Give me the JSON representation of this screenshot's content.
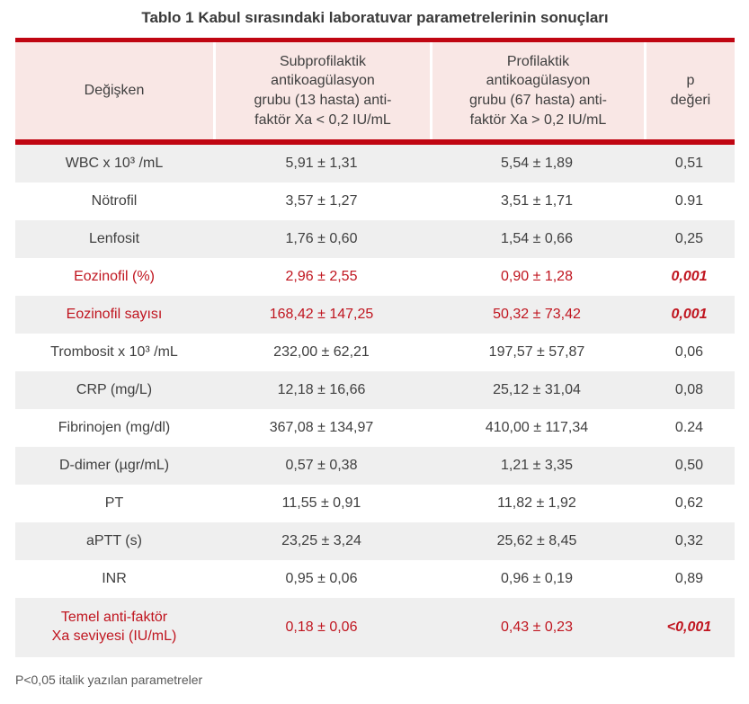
{
  "title": "Tablo 1 Kabul sırasındaki laboratuvar parametrelerinin sonuçları",
  "footnote": "P<0,05 italik yazılan parametreler",
  "colors": {
    "rule_red": "#c00612",
    "highlight_text_red": "#c0151f",
    "header_bg_pink": "#f9e7e5",
    "row_alt_gray": "#efefef",
    "body_text": "#3f3f3f",
    "footnote_text": "#595959"
  },
  "table": {
    "columns": [
      {
        "label": "Değişken"
      },
      {
        "label": "Subprofilaktik\nantikoagülasyon\ngrubu (13 hasta) anti-\nfaktör Xa < 0,2 IU/mL"
      },
      {
        "label": "Profilaktik\nantikoagülasyon\ngrubu (67 hasta) anti-\nfaktör Xa > 0,2 IU/mL"
      },
      {
        "label": "p\ndeğeri"
      }
    ],
    "rows": [
      {
        "name": "WBC x 10³ /mL",
        "subprophylactic": "5,91 ± 1,31",
        "prophylactic": "5,54 ± 1,89",
        "p": "0,51",
        "significant": false
      },
      {
        "name": "Nötrofil",
        "subprophylactic": "3,57 ± 1,27",
        "prophylactic": "3,51 ± 1,71",
        "p": "0.91",
        "significant": false
      },
      {
        "name": "Lenfosit",
        "subprophylactic": "1,76 ± 0,60",
        "prophylactic": "1,54 ± 0,66",
        "p": "0,25",
        "significant": false
      },
      {
        "name": "Eozinofil (%)",
        "subprophylactic": "2,96 ± 2,55",
        "prophylactic": "0,90 ± 1,28",
        "p": "0,001",
        "significant": true
      },
      {
        "name": "Eozinofil sayısı",
        "subprophylactic": "168,42 ± 147,25",
        "prophylactic": "50,32 ± 73,42",
        "p": "0,001",
        "significant": true
      },
      {
        "name": "Trombosit x 10³ /mL",
        "subprophylactic": "232,00 ± 62,21",
        "prophylactic": "197,57 ± 57,87",
        "p": "0,06",
        "significant": false
      },
      {
        "name": "CRP (mg/L)",
        "subprophylactic": "12,18 ± 16,66",
        "prophylactic": "25,12 ± 31,04",
        "p": "0,08",
        "significant": false
      },
      {
        "name": "Fibrinojen (mg/dl)",
        "subprophylactic": "367,08 ± 134,97",
        "prophylactic": "410,00 ± 117,34",
        "p": "0.24",
        "significant": false
      },
      {
        "name": "D-dimer (µgr/mL)",
        "subprophylactic": "0,57 ± 0,38",
        "prophylactic": "1,21 ± 3,35",
        "p": "0,50",
        "significant": false
      },
      {
        "name": "PT",
        "subprophylactic": "11,55 ± 0,91",
        "prophylactic": "11,82 ± 1,92",
        "p": "0,62",
        "significant": false
      },
      {
        "name": "aPTT (s)",
        "subprophylactic": "23,25 ± 3,24",
        "prophylactic": "25,62 ± 8,45",
        "p": "0,32",
        "significant": false
      },
      {
        "name": "INR",
        "subprophylactic": "0,95 ± 0,06",
        "prophylactic": "0,96 ± 0,19",
        "p": "0,89",
        "significant": false
      },
      {
        "name": "Temel anti-faktör\nXa seviyesi (IU/mL)",
        "subprophylactic": "0,18 ± 0,06",
        "prophylactic": "0,43 ± 0,23",
        "p": "<0,001",
        "significant": true
      }
    ]
  }
}
